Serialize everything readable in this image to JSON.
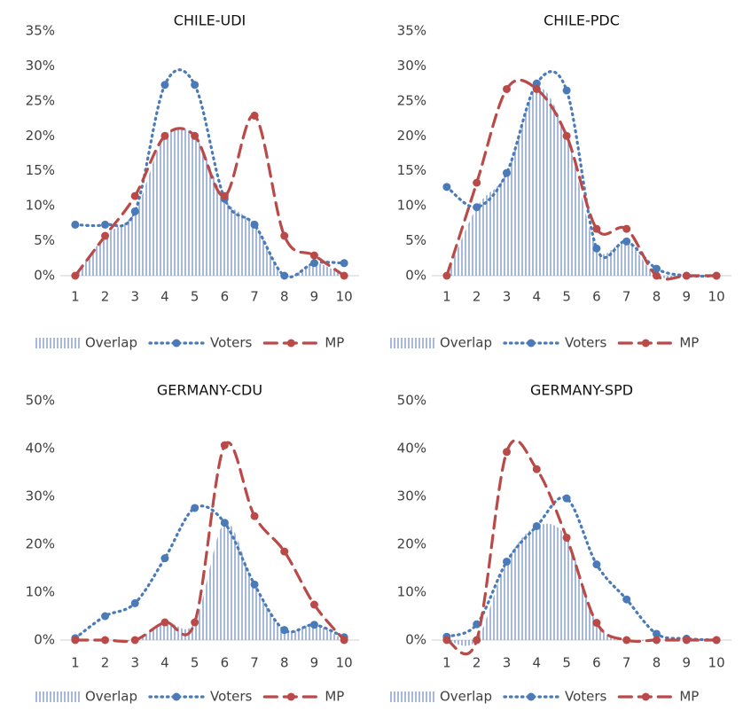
{
  "chart_data": [
    {
      "type": "line",
      "title": "CHILE-UDI",
      "categories": [
        1,
        2,
        3,
        4,
        5,
        6,
        7,
        8,
        9,
        10
      ],
      "ylim": [
        0,
        35
      ],
      "yticks": [
        {
          "value": 0,
          "label": "0%"
        },
        {
          "value": 5,
          "label": "5%"
        },
        {
          "value": 10,
          "label": "10%"
        },
        {
          "value": 15,
          "label": "15%"
        },
        {
          "value": 20,
          "label": "20%"
        },
        {
          "value": 25,
          "label": "25%"
        },
        {
          "value": 30,
          "label": "30%"
        },
        {
          "value": 35,
          "label": "35%"
        }
      ],
      "series": [
        {
          "name": "Overlap",
          "color": "#7f9cc8",
          "style": "hatch",
          "values": [
            0,
            5.7,
            9.2,
            20,
            20,
            11,
            7.3,
            0,
            1.8,
            0
          ]
        },
        {
          "name": "Voters",
          "color": "#4a7ab8",
          "style": "dotted",
          "values": [
            7.3,
            7.3,
            9.2,
            27.3,
            27.3,
            11,
            7.3,
            0,
            1.8,
            1.8
          ]
        },
        {
          "name": "MP",
          "color": "#b94a48",
          "style": "dashed",
          "values": [
            0,
            5.7,
            11.4,
            20,
            20,
            11.4,
            22.9,
            5.7,
            2.9,
            0
          ]
        }
      ]
    },
    {
      "type": "line",
      "title": "CHILE-PDC",
      "categories": [
        1,
        2,
        3,
        4,
        5,
        6,
        7,
        8,
        9,
        10
      ],
      "ylim": [
        0,
        35
      ],
      "yticks": [
        {
          "value": 0,
          "label": "0%"
        },
        {
          "value": 5,
          "label": "5%"
        },
        {
          "value": 10,
          "label": "10%"
        },
        {
          "value": 15,
          "label": "15%"
        },
        {
          "value": 20,
          "label": "20%"
        },
        {
          "value": 25,
          "label": "25%"
        },
        {
          "value": 30,
          "label": "30%"
        },
        {
          "value": 35,
          "label": "35%"
        }
      ],
      "series": [
        {
          "name": "Overlap",
          "color": "#7f9cc8",
          "style": "hatch",
          "values": [
            0,
            9.8,
            14.7,
            26.7,
            20,
            3.9,
            4.9,
            0,
            0,
            0
          ]
        },
        {
          "name": "Voters",
          "color": "#4a7ab8",
          "style": "dotted",
          "values": [
            12.7,
            9.8,
            14.7,
            27.5,
            26.5,
            3.9,
            4.9,
            1,
            0,
            0
          ]
        },
        {
          "name": "MP",
          "color": "#b94a48",
          "style": "dashed",
          "values": [
            0,
            13.3,
            26.7,
            26.7,
            20,
            6.7,
            6.7,
            0,
            0,
            0
          ]
        }
      ]
    },
    {
      "type": "line",
      "title": "GERMANY-CDU",
      "categories": [
        1,
        2,
        3,
        4,
        5,
        6,
        7,
        8,
        9,
        10
      ],
      "ylim": [
        0,
        50
      ],
      "yticks": [
        {
          "value": 0,
          "label": "0%"
        },
        {
          "value": 10,
          "label": "10%"
        },
        {
          "value": 20,
          "label": "20%"
        },
        {
          "value": 30,
          "label": "30%"
        },
        {
          "value": 40,
          "label": "40%"
        },
        {
          "value": 50,
          "label": "50%"
        }
      ],
      "series": [
        {
          "name": "Overlap",
          "color": "#7f9cc8",
          "style": "hatch",
          "values": [
            0,
            0,
            0,
            3.7,
            3.7,
            24.5,
            11.6,
            2.1,
            3.2,
            0
          ]
        },
        {
          "name": "Voters",
          "color": "#4a7ab8",
          "style": "dotted",
          "values": [
            0.4,
            5,
            7.7,
            17.1,
            27.6,
            24.5,
            11.6,
            2.1,
            3.2,
            0.6
          ]
        },
        {
          "name": "MP",
          "color": "#b94a48",
          "style": "dashed",
          "values": [
            0,
            0,
            0,
            3.7,
            3.7,
            40.7,
            25.9,
            18.5,
            7.4,
            0
          ]
        }
      ]
    },
    {
      "type": "line",
      "title": "GERMANY-SPD",
      "categories": [
        1,
        2,
        3,
        4,
        5,
        6,
        7,
        8,
        9,
        10
      ],
      "ylim": [
        0,
        50
      ],
      "yticks": [
        {
          "value": 0,
          "label": "0%"
        },
        {
          "value": 10,
          "label": "10%"
        },
        {
          "value": 20,
          "label": "20%"
        },
        {
          "value": 30,
          "label": "30%"
        },
        {
          "value": 40,
          "label": "40%"
        },
        {
          "value": 50,
          "label": "50%"
        }
      ],
      "series": [
        {
          "name": "Overlap",
          "color": "#7f9cc8",
          "style": "hatch",
          "values": [
            0,
            0,
            16.4,
            23.8,
            21.4,
            3.6,
            0,
            0,
            0,
            0
          ]
        },
        {
          "name": "Voters",
          "color": "#4a7ab8",
          "style": "dotted",
          "values": [
            0.7,
            3.3,
            16.4,
            23.8,
            29.6,
            15.8,
            8.5,
            1.3,
            0.3,
            0
          ]
        },
        {
          "name": "MP",
          "color": "#b94a48",
          "style": "dashed",
          "values": [
            0,
            0,
            39.3,
            35.7,
            21.4,
            3.6,
            0,
            0,
            0,
            0
          ]
        }
      ]
    }
  ]
}
